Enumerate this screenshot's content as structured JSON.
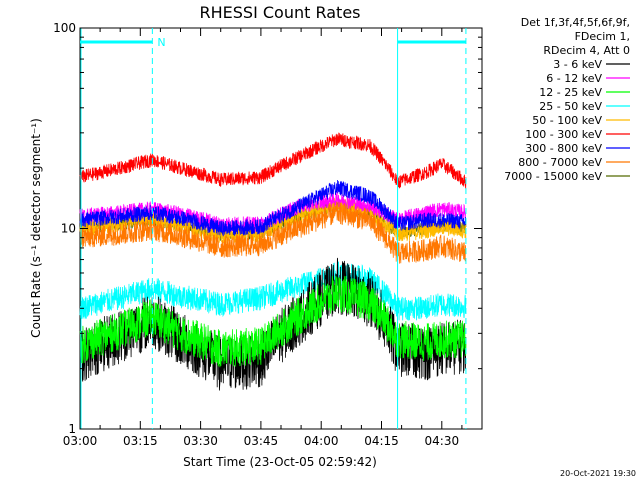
{
  "chart_data": {
    "type": "line",
    "title": "RHESSI Count Rates",
    "xlabel": "Start Time (23-Oct-05 02:59:42)",
    "ylabel": "Count Rate (s⁻¹ detector segment⁻¹)",
    "yscale": "log",
    "ylim": [
      1,
      100
    ],
    "xlim_minutes": [
      0,
      100
    ],
    "xticks": [
      {
        "minute": 0,
        "label": "03:00"
      },
      {
        "minute": 15,
        "label": "03:15"
      },
      {
        "minute": 30,
        "label": "03:30"
      },
      {
        "minute": 45,
        "label": "03:45"
      },
      {
        "minute": 60,
        "label": "04:00"
      },
      {
        "minute": 75,
        "label": "04:15"
      },
      {
        "minute": 90,
        "label": "04:30"
      }
    ],
    "yticks": [
      {
        "value": 1,
        "label": "1"
      },
      {
        "value": 10,
        "label": "10"
      },
      {
        "value": 100,
        "label": "100"
      }
    ],
    "legend_header": [
      "Det 1f,3f,4f,5f,6f,9f,",
      "FDecim 1,",
      "RDecim 4, Att 0"
    ],
    "legend_position": "top-right, outside plot",
    "night_flag": {
      "label": "N",
      "segments": [
        [
          0,
          18
        ],
        [
          79,
          96
        ]
      ]
    },
    "vertical_lines": {
      "solid": [
        79
      ],
      "dashed": [
        18,
        96
      ]
    },
    "time_points_minutes": [
      0,
      10,
      18,
      25,
      35,
      45,
      55,
      64,
      72,
      79,
      86,
      90,
      96
    ],
    "series": [
      {
        "name": "3 - 6 keV",
        "color": "#000000",
        "values": [
          2.3,
          2.9,
          3.5,
          2.8,
          2.1,
          2.2,
          3.6,
          5.2,
          4.4,
          2.5,
          2.4,
          2.5,
          2.6
        ]
      },
      {
        "name": "6 - 12 keV",
        "color": "#ff00ff",
        "values": [
          11.5,
          12.0,
          12.5,
          11.8,
          10.5,
          10.5,
          13.0,
          14.0,
          13.0,
          11.0,
          12.0,
          12.5,
          12.0
        ]
      },
      {
        "name": "12 - 25 keV",
        "color": "#00ff00",
        "values": [
          2.6,
          3.1,
          3.6,
          3.0,
          2.5,
          2.6,
          3.7,
          4.8,
          4.3,
          2.8,
          2.7,
          2.8,
          2.8
        ]
      },
      {
        "name": "25 - 50 keV",
        "color": "#00ffff",
        "values": [
          4.0,
          4.5,
          5.0,
          4.6,
          4.2,
          4.5,
          5.2,
          6.0,
          5.6,
          4.0,
          4.0,
          4.2,
          4.1
        ]
      },
      {
        "name": "50 - 100 keV",
        "color": "#ffbb00",
        "values": [
          10.0,
          10.6,
          11.2,
          10.4,
          9.2,
          9.4,
          11.6,
          13.0,
          12.0,
          9.4,
          9.8,
          10.2,
          9.8
        ]
      },
      {
        "name": "100 - 300 keV",
        "color": "#ff0000",
        "values": [
          18.0,
          20.0,
          22.0,
          20.0,
          17.5,
          18.0,
          23.0,
          28.0,
          26.0,
          17.0,
          19.0,
          21.0,
          17.0
        ]
      },
      {
        "name": "300 - 800 keV",
        "color": "#0000ff",
        "values": [
          11.0,
          11.5,
          12.0,
          11.3,
          10.0,
          10.2,
          13.0,
          16.0,
          14.5,
          10.5,
          11.0,
          11.0,
          10.8
        ]
      },
      {
        "name": "800 - 7000 keV",
        "color": "#ff7700",
        "values": [
          9.0,
          9.4,
          9.9,
          9.2,
          8.1,
          8.3,
          10.2,
          12.0,
          11.0,
          7.5,
          7.8,
          8.2,
          7.5
        ]
      },
      {
        "name": "7000 - 15000 keV",
        "color": "#556b00",
        "values": [
          10.0,
          10.5,
          11.0,
          10.4,
          9.3,
          9.5,
          11.5,
          13.0,
          12.0,
          9.5,
          10.0,
          10.4,
          10.0
        ]
      }
    ]
  },
  "footer": {
    "timestamp": "20-Oct-2021 19:30"
  }
}
